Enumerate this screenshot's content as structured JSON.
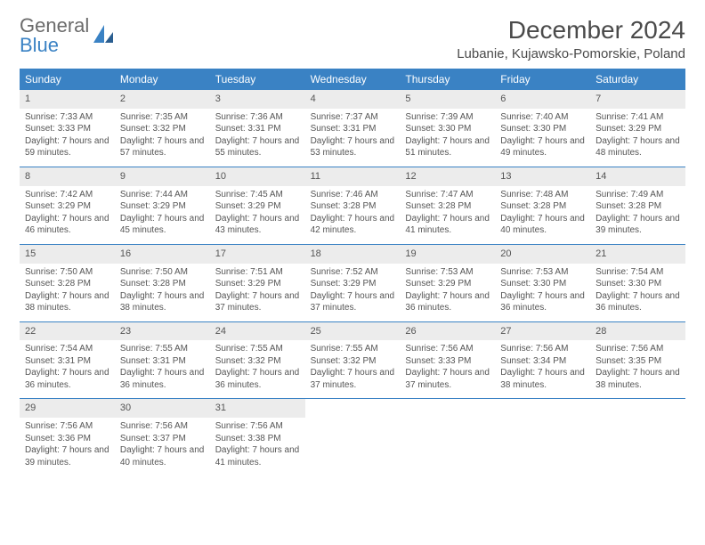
{
  "brand": {
    "name_part1": "General",
    "name_part2": "Blue"
  },
  "title": "December 2024",
  "location": "Lubanie, Kujawsko-Pomorskie, Poland",
  "colors": {
    "header_bg": "#3a82c4",
    "header_text": "#ffffff",
    "daynum_bg": "#ececec",
    "text": "#555555",
    "rule": "#3a82c4"
  },
  "day_names": [
    "Sunday",
    "Monday",
    "Tuesday",
    "Wednesday",
    "Thursday",
    "Friday",
    "Saturday"
  ],
  "weeks": [
    [
      {
        "n": "1",
        "sr": "Sunrise: 7:33 AM",
        "ss": "Sunset: 3:33 PM",
        "dl": "Daylight: 7 hours and 59 minutes."
      },
      {
        "n": "2",
        "sr": "Sunrise: 7:35 AM",
        "ss": "Sunset: 3:32 PM",
        "dl": "Daylight: 7 hours and 57 minutes."
      },
      {
        "n": "3",
        "sr": "Sunrise: 7:36 AM",
        "ss": "Sunset: 3:31 PM",
        "dl": "Daylight: 7 hours and 55 minutes."
      },
      {
        "n": "4",
        "sr": "Sunrise: 7:37 AM",
        "ss": "Sunset: 3:31 PM",
        "dl": "Daylight: 7 hours and 53 minutes."
      },
      {
        "n": "5",
        "sr": "Sunrise: 7:39 AM",
        "ss": "Sunset: 3:30 PM",
        "dl": "Daylight: 7 hours and 51 minutes."
      },
      {
        "n": "6",
        "sr": "Sunrise: 7:40 AM",
        "ss": "Sunset: 3:30 PM",
        "dl": "Daylight: 7 hours and 49 minutes."
      },
      {
        "n": "7",
        "sr": "Sunrise: 7:41 AM",
        "ss": "Sunset: 3:29 PM",
        "dl": "Daylight: 7 hours and 48 minutes."
      }
    ],
    [
      {
        "n": "8",
        "sr": "Sunrise: 7:42 AM",
        "ss": "Sunset: 3:29 PM",
        "dl": "Daylight: 7 hours and 46 minutes."
      },
      {
        "n": "9",
        "sr": "Sunrise: 7:44 AM",
        "ss": "Sunset: 3:29 PM",
        "dl": "Daylight: 7 hours and 45 minutes."
      },
      {
        "n": "10",
        "sr": "Sunrise: 7:45 AM",
        "ss": "Sunset: 3:29 PM",
        "dl": "Daylight: 7 hours and 43 minutes."
      },
      {
        "n": "11",
        "sr": "Sunrise: 7:46 AM",
        "ss": "Sunset: 3:28 PM",
        "dl": "Daylight: 7 hours and 42 minutes."
      },
      {
        "n": "12",
        "sr": "Sunrise: 7:47 AM",
        "ss": "Sunset: 3:28 PM",
        "dl": "Daylight: 7 hours and 41 minutes."
      },
      {
        "n": "13",
        "sr": "Sunrise: 7:48 AM",
        "ss": "Sunset: 3:28 PM",
        "dl": "Daylight: 7 hours and 40 minutes."
      },
      {
        "n": "14",
        "sr": "Sunrise: 7:49 AM",
        "ss": "Sunset: 3:28 PM",
        "dl": "Daylight: 7 hours and 39 minutes."
      }
    ],
    [
      {
        "n": "15",
        "sr": "Sunrise: 7:50 AM",
        "ss": "Sunset: 3:28 PM",
        "dl": "Daylight: 7 hours and 38 minutes."
      },
      {
        "n": "16",
        "sr": "Sunrise: 7:50 AM",
        "ss": "Sunset: 3:28 PM",
        "dl": "Daylight: 7 hours and 38 minutes."
      },
      {
        "n": "17",
        "sr": "Sunrise: 7:51 AM",
        "ss": "Sunset: 3:29 PM",
        "dl": "Daylight: 7 hours and 37 minutes."
      },
      {
        "n": "18",
        "sr": "Sunrise: 7:52 AM",
        "ss": "Sunset: 3:29 PM",
        "dl": "Daylight: 7 hours and 37 minutes."
      },
      {
        "n": "19",
        "sr": "Sunrise: 7:53 AM",
        "ss": "Sunset: 3:29 PM",
        "dl": "Daylight: 7 hours and 36 minutes."
      },
      {
        "n": "20",
        "sr": "Sunrise: 7:53 AM",
        "ss": "Sunset: 3:30 PM",
        "dl": "Daylight: 7 hours and 36 minutes."
      },
      {
        "n": "21",
        "sr": "Sunrise: 7:54 AM",
        "ss": "Sunset: 3:30 PM",
        "dl": "Daylight: 7 hours and 36 minutes."
      }
    ],
    [
      {
        "n": "22",
        "sr": "Sunrise: 7:54 AM",
        "ss": "Sunset: 3:31 PM",
        "dl": "Daylight: 7 hours and 36 minutes."
      },
      {
        "n": "23",
        "sr": "Sunrise: 7:55 AM",
        "ss": "Sunset: 3:31 PM",
        "dl": "Daylight: 7 hours and 36 minutes."
      },
      {
        "n": "24",
        "sr": "Sunrise: 7:55 AM",
        "ss": "Sunset: 3:32 PM",
        "dl": "Daylight: 7 hours and 36 minutes."
      },
      {
        "n": "25",
        "sr": "Sunrise: 7:55 AM",
        "ss": "Sunset: 3:32 PM",
        "dl": "Daylight: 7 hours and 37 minutes."
      },
      {
        "n": "26",
        "sr": "Sunrise: 7:56 AM",
        "ss": "Sunset: 3:33 PM",
        "dl": "Daylight: 7 hours and 37 minutes."
      },
      {
        "n": "27",
        "sr": "Sunrise: 7:56 AM",
        "ss": "Sunset: 3:34 PM",
        "dl": "Daylight: 7 hours and 38 minutes."
      },
      {
        "n": "28",
        "sr": "Sunrise: 7:56 AM",
        "ss": "Sunset: 3:35 PM",
        "dl": "Daylight: 7 hours and 38 minutes."
      }
    ],
    [
      {
        "n": "29",
        "sr": "Sunrise: 7:56 AM",
        "ss": "Sunset: 3:36 PM",
        "dl": "Daylight: 7 hours and 39 minutes."
      },
      {
        "n": "30",
        "sr": "Sunrise: 7:56 AM",
        "ss": "Sunset: 3:37 PM",
        "dl": "Daylight: 7 hours and 40 minutes."
      },
      {
        "n": "31",
        "sr": "Sunrise: 7:56 AM",
        "ss": "Sunset: 3:38 PM",
        "dl": "Daylight: 7 hours and 41 minutes."
      },
      null,
      null,
      null,
      null
    ]
  ]
}
